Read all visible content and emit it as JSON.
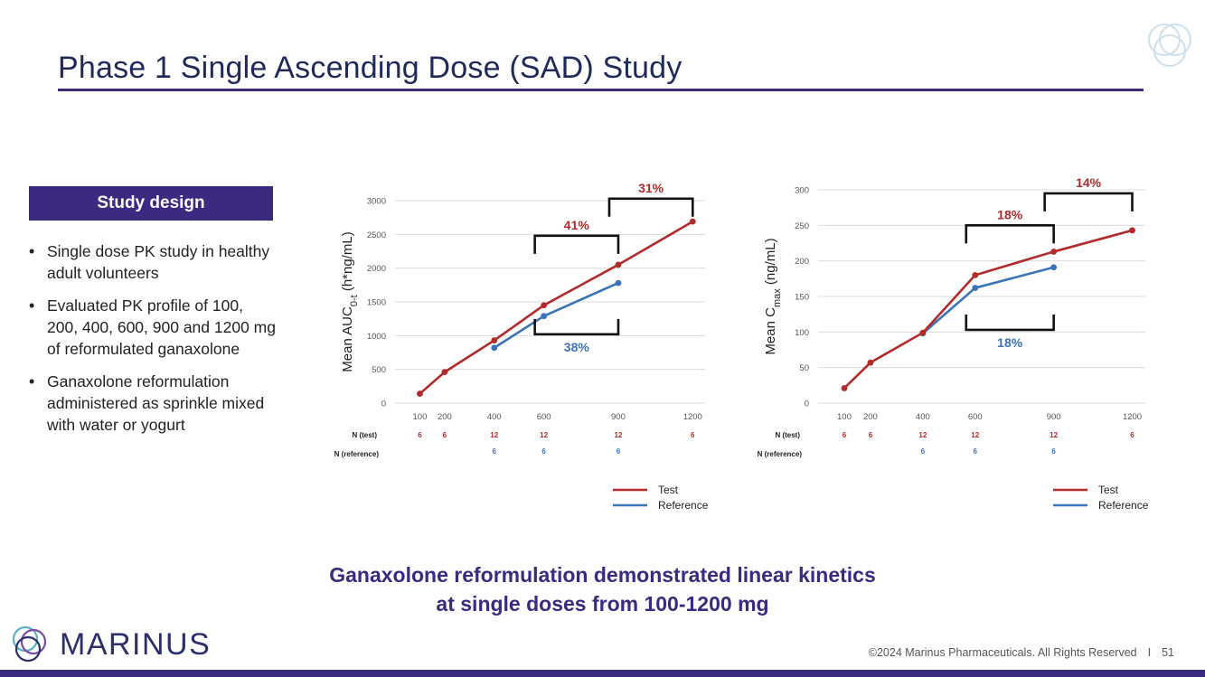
{
  "slide": {
    "title": "Phase 1 Single Ascending Dose (SAD) Study",
    "study_design_label": "Study design",
    "bullets": [
      "Single dose PK study in healthy adult volunteers",
      "Evaluated PK profile of 100, 200, 400, 600, 900 and 1200 mg of reformulated ganaxolone",
      "Ganaxolone reformulation administered as sprinkle mixed with water or yogurt"
    ],
    "conclusion_line1": "Ganaxolone reformulation demonstrated linear kinetics",
    "conclusion_line2": "at single doses from 100-1200 mg",
    "brand_name": "MARINUS",
    "footer_text": "©2024 Marinus Pharmaceuticals. All Rights Reserved",
    "footer_sep": "I",
    "page_number": "51"
  },
  "colors": {
    "test": "#b22a2a",
    "reference": "#3a74b8",
    "accent": "#3b2a80",
    "title": "#1f2a5a"
  },
  "chart_data": [
    {
      "type": "line",
      "ylabel": "Mean AUC0-t (h*ng/mL)",
      "ylabel_main": "Mean AUC",
      "ylabel_sub": "0-t",
      "ylabel_rest": " (h*ng/mL)",
      "x": [
        100,
        200,
        400,
        600,
        900,
        1200
      ],
      "xlim": [
        0,
        1250
      ],
      "ylim": [
        0,
        3000
      ],
      "yticks": [
        0,
        500,
        1000,
        1500,
        2000,
        2500,
        3000
      ],
      "series": [
        {
          "name": "Test",
          "x": [
            100,
            200,
            400,
            600,
            900,
            1200
          ],
          "values": [
            140,
            460,
            930,
            1450,
            2050,
            2690
          ]
        },
        {
          "name": "Reference",
          "x": [
            400,
            600,
            900
          ],
          "values": [
            820,
            1290,
            1780
          ]
        }
      ],
      "n_test_label": "N (test)",
      "n_ref_label": "N (reference)",
      "n_test": [
        {
          "x": 100,
          "n": "6"
        },
        {
          "x": 200,
          "n": "6"
        },
        {
          "x": 400,
          "n": "12"
        },
        {
          "x": 600,
          "n": "12"
        },
        {
          "x": 900,
          "n": "12"
        },
        {
          "x": 1200,
          "n": "6"
        }
      ],
      "n_ref": [
        {
          "x": 400,
          "n": "6"
        },
        {
          "x": 600,
          "n": "6"
        },
        {
          "x": 900,
          "n": "6"
        }
      ],
      "annotations": [
        {
          "label": "41%",
          "series": "Test",
          "x_from": 600,
          "x_to": 900,
          "y": 2480
        },
        {
          "label": "31%",
          "series": "Test",
          "x_from": 900,
          "x_to": 1200,
          "y": 3030
        },
        {
          "label": "38%",
          "series": "Reference",
          "x_from": 600,
          "x_to": 900,
          "y": 1020
        }
      ],
      "legend": [
        "Test",
        "Reference"
      ],
      "legend_position": "bottom-right"
    },
    {
      "type": "line",
      "ylabel": "Mean Cmax (ng/mL)",
      "ylabel_main": "Mean C",
      "ylabel_sub": "max",
      "ylabel_rest": " (ng/mL)",
      "x": [
        100,
        200,
        400,
        600,
        900,
        1200
      ],
      "xlim": [
        0,
        1250
      ],
      "ylim": [
        0,
        300
      ],
      "yticks": [
        0,
        50,
        100,
        150,
        200,
        250,
        300
      ],
      "series": [
        {
          "name": "Test",
          "x": [
            100,
            200,
            400,
            600,
            900,
            1200
          ],
          "values": [
            21,
            57,
            99,
            180,
            213,
            243
          ]
        },
        {
          "name": "Reference",
          "x": [
            400,
            600,
            900
          ],
          "values": [
            98,
            162,
            191
          ]
        }
      ],
      "n_test_label": "N (test)",
      "n_ref_label": "N (reference)",
      "n_test": [
        {
          "x": 100,
          "n": "6"
        },
        {
          "x": 200,
          "n": "6"
        },
        {
          "x": 400,
          "n": "12"
        },
        {
          "x": 600,
          "n": "12"
        },
        {
          "x": 900,
          "n": "12"
        },
        {
          "x": 1200,
          "n": "6"
        }
      ],
      "n_ref": [
        {
          "x": 400,
          "n": "6"
        },
        {
          "x": 600,
          "n": "6"
        },
        {
          "x": 900,
          "n": "6"
        }
      ],
      "annotations": [
        {
          "label": "18%",
          "series": "Test",
          "x_from": 600,
          "x_to": 900,
          "y": 250
        },
        {
          "label": "14%",
          "series": "Test",
          "x_from": 900,
          "x_to": 1200,
          "y": 295
        },
        {
          "label": "18%",
          "series": "Reference",
          "x_from": 600,
          "x_to": 900,
          "y": 103
        }
      ],
      "legend": [
        "Test",
        "Reference"
      ],
      "legend_position": "bottom-right"
    }
  ]
}
